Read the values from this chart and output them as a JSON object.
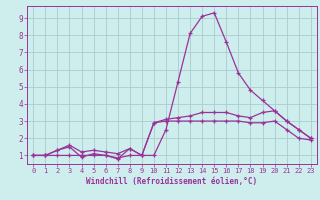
{
  "title": "",
  "xlabel": "Windchill (Refroidissement éolien,°C)",
  "ylabel": "",
  "background_color": "#ceeeed",
  "grid_color": "#aacccc",
  "line_color": "#993399",
  "xlim": [
    -0.5,
    23.5
  ],
  "ylim": [
    0.5,
    9.7
  ],
  "x_ticks": [
    0,
    1,
    2,
    3,
    4,
    5,
    6,
    7,
    8,
    9,
    10,
    11,
    12,
    13,
    14,
    15,
    16,
    17,
    18,
    19,
    20,
    21,
    22,
    23
  ],
  "y_ticks": [
    1,
    2,
    3,
    4,
    5,
    6,
    7,
    8,
    9
  ],
  "series": [
    [
      1.0,
      1.0,
      1.3,
      1.5,
      0.9,
      1.1,
      1.0,
      0.8,
      1.4,
      1.0,
      2.9,
      3.0,
      3.0,
      3.0,
      3.0,
      3.0,
      3.0,
      3.0,
      2.9,
      2.9,
      3.0,
      2.5,
      2.0,
      1.9
    ],
    [
      1.0,
      1.0,
      1.3,
      1.6,
      1.2,
      1.3,
      1.2,
      1.1,
      1.4,
      1.0,
      2.9,
      3.1,
      3.2,
      3.3,
      3.5,
      3.5,
      3.5,
      3.3,
      3.2,
      3.5,
      3.6,
      3.0,
      2.5,
      2.0
    ],
    [
      1.0,
      1.0,
      1.0,
      1.0,
      1.0,
      1.0,
      1.0,
      0.85,
      1.0,
      1.0,
      1.0,
      2.5,
      5.3,
      8.1,
      9.1,
      9.3,
      7.6,
      5.8,
      4.8,
      4.2,
      3.6,
      3.0,
      2.5,
      2.0
    ]
  ],
  "xlabel_fontsize": 5.5,
  "tick_fontsize_x": 5.0,
  "tick_fontsize_y": 5.5
}
